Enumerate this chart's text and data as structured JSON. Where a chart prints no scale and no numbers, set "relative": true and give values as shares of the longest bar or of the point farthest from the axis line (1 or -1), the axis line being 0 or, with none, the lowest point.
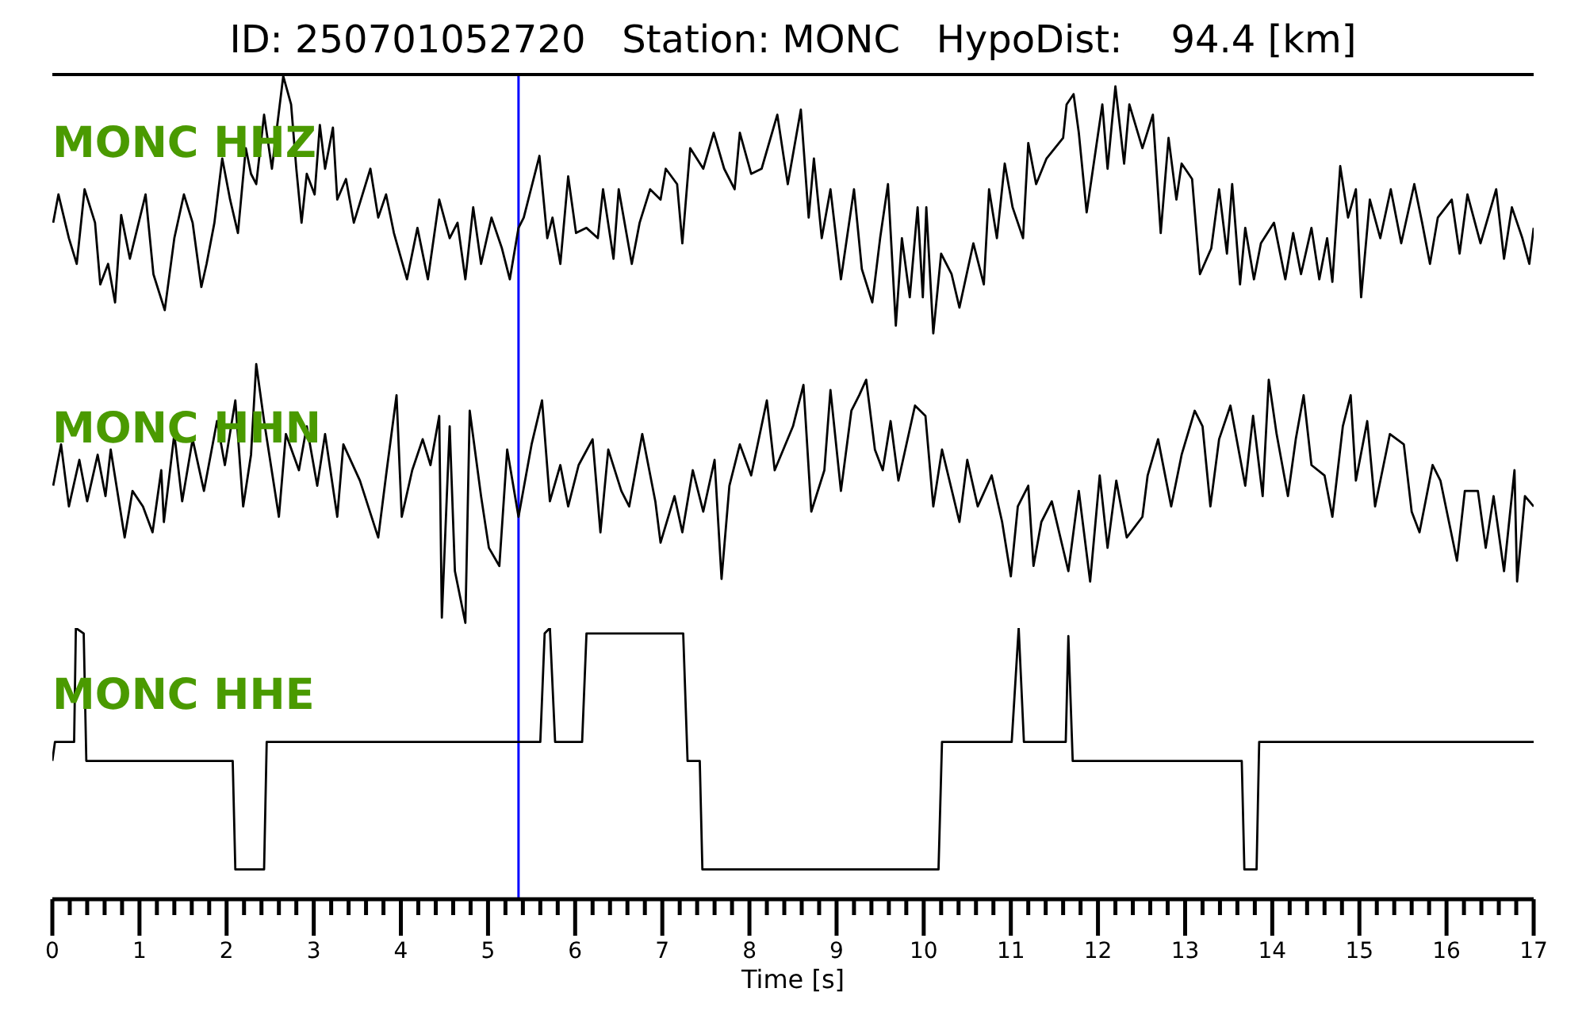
{
  "chart_data": [
    {
      "type": "line",
      "title": "ID: 250701052720   Station: MONC   HypoDist:    94.4 [km]",
      "relative": true,
      "xlim": [
        0,
        17
      ],
      "tick_labels": false,
      "ref_lines": [
        {
          "axis": "x",
          "value": 5.35,
          "color": "#0000ff"
        }
      ],
      "series": [
        {
          "name": "MONC HHZ",
          "color": "#000000",
          "x": [
            0.01,
            0.07,
            0.19,
            0.28,
            0.37,
            0.49,
            0.55,
            0.64,
            0.72,
            0.79,
            0.89,
            1.07,
            1.16,
            1.29,
            1.4,
            1.51,
            1.61,
            1.71,
            1.77,
            1.86,
            1.95,
            2.04,
            2.13,
            2.22,
            2.28,
            2.34,
            2.43,
            2.52,
            2.65,
            2.74,
            2.8,
            2.86,
            2.92,
            3.01,
            3.07,
            3.13,
            3.22,
            3.27,
            3.37,
            3.46,
            3.65,
            3.74,
            3.83,
            3.92,
            4.07,
            4.19,
            4.31,
            4.44,
            4.56,
            4.65,
            4.74,
            4.83,
            4.92,
            5.04,
            5.16,
            5.25,
            5.35,
            5.41,
            5.59,
            5.68,
            5.74,
            5.83,
            5.92,
            6.01,
            6.13,
            6.26,
            6.32,
            6.44,
            6.5,
            6.65,
            6.74,
            6.86,
            6.98,
            7.04,
            7.17,
            7.23,
            7.32,
            7.47,
            7.59,
            7.71,
            7.83,
            7.89,
            8.02,
            8.14,
            8.32,
            8.44,
            8.59,
            8.68,
            8.74,
            8.83,
            8.93,
            9.05,
            9.2,
            9.29,
            9.41,
            9.5,
            9.59,
            9.68,
            9.75,
            9.84,
            9.93,
            9.99,
            10.03,
            10.11,
            10.2,
            10.32,
            10.41,
            10.57,
            10.69,
            10.75,
            10.84,
            10.93,
            11.02,
            11.14,
            11.2,
            11.29,
            11.41,
            11.6,
            11.64,
            11.72,
            11.78,
            11.87,
            11.96,
            12.05,
            12.11,
            12.2,
            12.3,
            12.36,
            12.51,
            12.63,
            12.72,
            12.81,
            12.9,
            12.96,
            13.08,
            13.17,
            13.3,
            13.39,
            13.48,
            13.54,
            13.63,
            13.69,
            13.79,
            13.87,
            14.02,
            14.15,
            14.24,
            14.33,
            14.45,
            14.54,
            14.63,
            14.69,
            14.78,
            14.87,
            14.96,
            15.02,
            15.12,
            15.24,
            15.36,
            15.48,
            15.63,
            15.72,
            15.81,
            15.9,
            16.06,
            16.15,
            16.24,
            16.39,
            16.57,
            16.66,
            16.75,
            16.87,
            16.95,
            17.0
          ],
          "values": [
            0.43,
            0.54,
            0.37,
            0.27,
            0.56,
            0.43,
            0.19,
            0.27,
            0.12,
            0.46,
            0.29,
            0.54,
            0.23,
            0.09,
            0.37,
            0.54,
            0.43,
            0.18,
            0.27,
            0.43,
            0.68,
            0.52,
            0.39,
            0.72,
            0.62,
            0.58,
            0.85,
            0.64,
            1.0,
            0.89,
            0.64,
            0.43,
            0.62,
            0.54,
            0.81,
            0.64,
            0.8,
            0.52,
            0.6,
            0.43,
            0.64,
            0.45,
            0.54,
            0.39,
            0.21,
            0.41,
            0.21,
            0.52,
            0.37,
            0.43,
            0.21,
            0.49,
            0.27,
            0.45,
            0.33,
            0.21,
            0.41,
            0.45,
            0.69,
            0.37,
            0.45,
            0.27,
            0.61,
            0.39,
            0.41,
            0.37,
            0.56,
            0.29,
            0.56,
            0.27,
            0.43,
            0.56,
            0.52,
            0.64,
            0.58,
            0.35,
            0.72,
            0.64,
            0.78,
            0.64,
            0.56,
            0.78,
            0.62,
            0.64,
            0.85,
            0.58,
            0.87,
            0.45,
            0.68,
            0.37,
            0.56,
            0.21,
            0.56,
            0.25,
            0.12,
            0.37,
            0.58,
            0.03,
            0.37,
            0.14,
            0.49,
            0.14,
            0.49,
            0.0,
            0.31,
            0.23,
            0.1,
            0.35,
            0.19,
            0.56,
            0.37,
            0.66,
            0.49,
            0.37,
            0.74,
            0.58,
            0.68,
            0.76,
            0.89,
            0.93,
            0.78,
            0.47,
            0.68,
            0.89,
            0.64,
            0.96,
            0.66,
            0.89,
            0.72,
            0.85,
            0.39,
            0.76,
            0.52,
            0.66,
            0.6,
            0.23,
            0.33,
            0.56,
            0.31,
            0.58,
            0.19,
            0.41,
            0.21,
            0.35,
            0.43,
            0.21,
            0.39,
            0.23,
            0.41,
            0.21,
            0.37,
            0.2,
            0.65,
            0.45,
            0.56,
            0.14,
            0.52,
            0.37,
            0.56,
            0.35,
            0.58,
            0.43,
            0.27,
            0.45,
            0.52,
            0.31,
            0.54,
            0.35,
            0.56,
            0.29,
            0.49,
            0.37,
            0.27,
            0.41
          ]
        }
      ]
    },
    {
      "type": "line",
      "relative": true,
      "xlim": [
        0,
        17
      ],
      "tick_labels": false,
      "ref_lines": [
        {
          "axis": "x",
          "value": 5.35,
          "color": "#0000ff"
        }
      ],
      "series": [
        {
          "name": "MONC HHN",
          "color": "#000000",
          "x": [
            0.01,
            0.1,
            0.19,
            0.31,
            0.4,
            0.52,
            0.61,
            0.67,
            0.83,
            0.92,
            1.04,
            1.15,
            1.25,
            1.28,
            1.4,
            1.49,
            1.61,
            1.74,
            1.89,
            1.98,
            2.1,
            2.19,
            2.28,
            2.34,
            2.43,
            2.6,
            2.68,
            2.83,
            2.92,
            3.04,
            3.13,
            3.27,
            3.34,
            3.53,
            3.74,
            3.83,
            3.95,
            4.01,
            4.13,
            4.25,
            4.34,
            4.44,
            4.47,
            4.56,
            4.62,
            4.74,
            4.79,
            4.92,
            5.01,
            5.13,
            5.22,
            5.35,
            5.5,
            5.62,
            5.71,
            5.83,
            5.92,
            6.04,
            6.2,
            6.29,
            6.38,
            6.53,
            6.62,
            6.77,
            6.92,
            6.98,
            7.14,
            7.23,
            7.35,
            7.47,
            7.6,
            7.68,
            7.77,
            7.89,
            8.02,
            8.2,
            8.29,
            8.5,
            8.62,
            8.71,
            8.86,
            8.93,
            9.05,
            9.17,
            9.26,
            9.34,
            9.44,
            9.53,
            9.62,
            9.71,
            9.9,
            10.02,
            10.11,
            10.21,
            10.41,
            10.5,
            10.62,
            10.78,
            10.9,
            11.0,
            11.08,
            11.2,
            11.26,
            11.35,
            11.47,
            11.66,
            11.78,
            11.91,
            12.02,
            12.11,
            12.21,
            12.33,
            12.51,
            12.57,
            12.69,
            12.84,
            12.96,
            13.11,
            13.2,
            13.29,
            13.39,
            13.52,
            13.69,
            13.78,
            13.89,
            13.96,
            14.05,
            14.18,
            14.27,
            14.36,
            14.45,
            14.6,
            14.69,
            14.81,
            14.9,
            14.96,
            15.09,
            15.18,
            15.35,
            15.51,
            15.6,
            15.69,
            15.84,
            15.93,
            16.12,
            16.21,
            16.36,
            16.45,
            16.54,
            16.66,
            16.78,
            16.81,
            16.9,
            17.0
          ],
          "values": [
            0.53,
            0.69,
            0.45,
            0.63,
            0.47,
            0.65,
            0.49,
            0.67,
            0.33,
            0.51,
            0.45,
            0.35,
            0.59,
            0.39,
            0.73,
            0.47,
            0.71,
            0.51,
            0.78,
            0.61,
            0.86,
            0.45,
            0.65,
            1.0,
            0.78,
            0.41,
            0.73,
            0.59,
            0.76,
            0.53,
            0.73,
            0.41,
            0.69,
            0.55,
            0.33,
            0.57,
            0.88,
            0.41,
            0.59,
            0.71,
            0.61,
            0.8,
            0.02,
            0.76,
            0.2,
            0.0,
            0.82,
            0.49,
            0.29,
            0.22,
            0.67,
            0.41,
            0.69,
            0.86,
            0.47,
            0.61,
            0.45,
            0.61,
            0.71,
            0.35,
            0.67,
            0.51,
            0.45,
            0.73,
            0.47,
            0.31,
            0.49,
            0.35,
            0.59,
            0.43,
            0.63,
            0.17,
            0.53,
            0.69,
            0.57,
            0.86,
            0.59,
            0.76,
            0.92,
            0.43,
            0.59,
            0.9,
            0.51,
            0.82,
            0.88,
            0.94,
            0.67,
            0.59,
            0.78,
            0.55,
            0.84,
            0.8,
            0.45,
            0.67,
            0.39,
            0.63,
            0.45,
            0.57,
            0.39,
            0.18,
            0.45,
            0.53,
            0.22,
            0.39,
            0.47,
            0.2,
            0.51,
            0.16,
            0.57,
            0.29,
            0.55,
            0.33,
            0.41,
            0.57,
            0.71,
            0.45,
            0.65,
            0.82,
            0.76,
            0.45,
            0.71,
            0.84,
            0.53,
            0.8,
            0.49,
            0.94,
            0.73,
            0.49,
            0.71,
            0.88,
            0.61,
            0.57,
            0.41,
            0.76,
            0.88,
            0.55,
            0.78,
            0.45,
            0.73,
            0.69,
            0.43,
            0.35,
            0.61,
            0.55,
            0.24,
            0.51,
            0.51,
            0.29,
            0.49,
            0.2,
            0.59,
            0.16,
            0.49,
            0.45
          ]
        }
      ]
    },
    {
      "type": "line",
      "relative": true,
      "xlabel": "Time [s]",
      "xlim": [
        0,
        17
      ],
      "tick_labels": "x",
      "xticks": [
        0,
        {
          "value": 0.2,
          "label": null
        },
        {
          "value": 0.4,
          "label": null
        },
        {
          "value": 0.6,
          "label": null
        },
        {
          "value": 0.8,
          "label": null
        },
        1,
        {
          "value": 1.2,
          "label": null
        },
        {
          "value": 1.4,
          "label": null
        },
        {
          "value": 1.6,
          "label": null
        },
        {
          "value": 1.8,
          "label": null
        },
        2,
        {
          "value": 2.2,
          "label": null
        },
        {
          "value": 2.4,
          "label": null
        },
        {
          "value": 2.6,
          "label": null
        },
        {
          "value": 2.8,
          "label": null
        },
        3,
        {
          "value": 3.2,
          "label": null
        },
        {
          "value": 3.4,
          "label": null
        },
        {
          "value": 3.6,
          "label": null
        },
        {
          "value": 3.8,
          "label": null
        },
        4,
        {
          "value": 4.2,
          "label": null
        },
        {
          "value": 4.4,
          "label": null
        },
        {
          "value": 4.6,
          "label": null
        },
        {
          "value": 4.8,
          "label": null
        },
        5,
        {
          "value": 5.2,
          "label": null
        },
        {
          "value": 5.4,
          "label": null
        },
        {
          "value": 5.6,
          "label": null
        },
        {
          "value": 5.8,
          "label": null
        },
        6,
        {
          "value": 6.2,
          "label": null
        },
        {
          "value": 6.4,
          "label": null
        },
        {
          "value": 6.6,
          "label": null
        },
        {
          "value": 6.8,
          "label": null
        },
        7,
        {
          "value": 7.2,
          "label": null
        },
        {
          "value": 7.4,
          "label": null
        },
        {
          "value": 7.6,
          "label": null
        },
        {
          "value": 7.8,
          "label": null
        },
        8,
        {
          "value": 8.2,
          "label": null
        },
        {
          "value": 8.4,
          "label": null
        },
        {
          "value": 8.6,
          "label": null
        },
        {
          "value": 8.8,
          "label": null
        },
        9,
        {
          "value": 9.2,
          "label": null
        },
        {
          "value": 9.4,
          "label": null
        },
        {
          "value": 9.6,
          "label": null
        },
        {
          "value": 9.8,
          "label": null
        },
        10,
        {
          "value": 10.2,
          "label": null
        },
        {
          "value": 10.4,
          "label": null
        },
        {
          "value": 10.6,
          "label": null
        },
        {
          "value": 10.8,
          "label": null
        },
        11,
        {
          "value": 11.2,
          "label": null
        },
        {
          "value": 11.4,
          "label": null
        },
        {
          "value": 11.6,
          "label": null
        },
        {
          "value": 11.8,
          "label": null
        },
        12,
        {
          "value": 12.2,
          "label": null
        },
        {
          "value": 12.4,
          "label": null
        },
        {
          "value": 12.6,
          "label": null
        },
        {
          "value": 12.8,
          "label": null
        },
        13,
        {
          "value": 13.2,
          "label": null
        },
        {
          "value": 13.4,
          "label": null
        },
        {
          "value": 13.6,
          "label": null
        },
        {
          "value": 13.8,
          "label": null
        },
        14,
        {
          "value": 14.2,
          "label": null
        },
        {
          "value": 14.4,
          "label": null
        },
        {
          "value": 14.6,
          "label": null
        },
        {
          "value": 14.8,
          "label": null
        },
        15,
        {
          "value": 15.2,
          "label": null
        },
        {
          "value": 15.4,
          "label": null
        },
        {
          "value": 15.6,
          "label": null
        },
        {
          "value": 15.8,
          "label": null
        },
        16,
        {
          "value": 16.2,
          "label": null
        },
        {
          "value": 16.4,
          "label": null
        },
        {
          "value": 16.6,
          "label": null
        },
        {
          "value": 16.8,
          "label": null
        },
        17
      ],
      "ref_lines": [
        {
          "axis": "x",
          "value": 5.35,
          "color": "#0000ff"
        }
      ],
      "series": [
        {
          "name": "MONC HHE",
          "color": "#000000",
          "x": [
            0,
            0.03,
            0.25,
            0.27,
            0.36,
            0.39,
            2.07,
            2.1,
            2.43,
            2.46,
            5.6,
            5.65,
            5.71,
            5.77,
            6.08,
            6.13,
            7.24,
            7.29,
            7.43,
            7.46,
            10.17,
            10.21,
            11.01,
            11.09,
            11.15,
            11.63,
            11.66,
            11.71,
            13.65,
            13.68,
            13.82,
            13.85,
            17
          ],
          "values": [
            0.51,
            0.58,
            0.58,
            1.0,
            0.98,
            0.51,
            0.51,
            0.11,
            0.11,
            0.58,
            0.58,
            0.98,
            1.0,
            0.58,
            0.58,
            0.98,
            0.98,
            0.51,
            0.51,
            0.11,
            0.11,
            0.58,
            0.58,
            1.0,
            0.58,
            0.58,
            0.97,
            0.51,
            0.51,
            0.11,
            0.11,
            0.58,
            0.58
          ]
        }
      ]
    }
  ]
}
